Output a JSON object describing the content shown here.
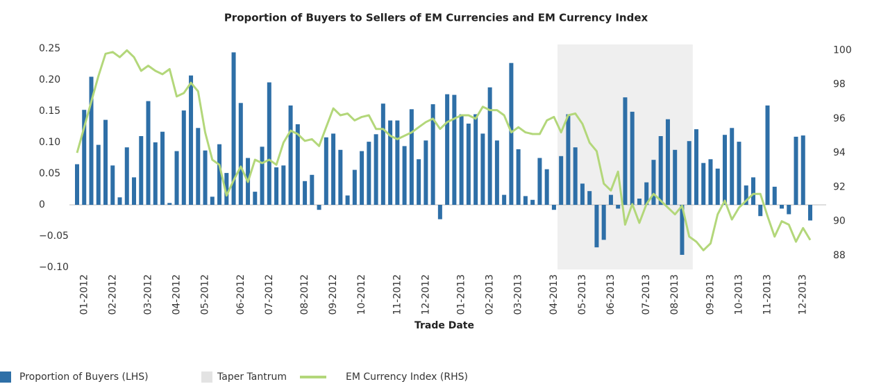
{
  "chart_data": {
    "type": "bar_line",
    "title": "Proportion of Buyers to Sellers of EM Currencies and EM Currency Index",
    "xlabel": "Trade Date",
    "categories": [
      null,
      "01-2012",
      null,
      null,
      null,
      "02-2012",
      null,
      null,
      null,
      null,
      "03-2012",
      null,
      null,
      null,
      "04-2012",
      null,
      null,
      null,
      "05-2012",
      null,
      null,
      null,
      null,
      "06-2012",
      null,
      null,
      null,
      "07-2012",
      null,
      null,
      null,
      null,
      "08-2012",
      null,
      null,
      null,
      "09-2012",
      null,
      null,
      null,
      "10-2012",
      null,
      null,
      null,
      null,
      "11-2012",
      null,
      null,
      null,
      "12-2012",
      null,
      null,
      null,
      null,
      "01-2013",
      null,
      null,
      null,
      "02-2013",
      null,
      null,
      null,
      "03-2013",
      null,
      null,
      null,
      null,
      "04-2013",
      null,
      null,
      null,
      "05-2013",
      null,
      null,
      null,
      "06-2013",
      null,
      null,
      null,
      null,
      "07-2013",
      null,
      null,
      null,
      "08-2013",
      null,
      null,
      null,
      null,
      "09-2013",
      null,
      null,
      null,
      "10-2013",
      null,
      null,
      null,
      "11-2013",
      null,
      null,
      null,
      null,
      "12-2013",
      null
    ],
    "series": [
      {
        "name": "Proportion of Buyers (LHS)",
        "color": "#2e6fa7",
        "axis": "y",
        "values": [
          0.065,
          0.152,
          0.205,
          0.096,
          0.136,
          0.063,
          0.012,
          0.092,
          0.044,
          0.11,
          0.166,
          0.1,
          0.117,
          0.003,
          0.086,
          0.151,
          0.207,
          0.123,
          0.087,
          0.013,
          0.097,
          0.051,
          0.244,
          0.163,
          0.075,
          0.021,
          0.093,
          0.196,
          0.06,
          0.063,
          0.159,
          0.129,
          0.038,
          0.048,
          -0.008,
          0.108,
          0.114,
          0.088,
          0.015,
          0.056,
          0.086,
          0.101,
          0.113,
          0.162,
          0.135,
          0.135,
          0.094,
          0.153,
          0.073,
          0.103,
          0.161,
          -0.023,
          0.177,
          0.176,
          0.145,
          0.13,
          0.145,
          0.114,
          0.188,
          0.103,
          0.016,
          0.227,
          0.089,
          0.014,
          0.008,
          0.075,
          0.057,
          -0.008,
          0.078,
          0.145,
          0.092,
          0.034,
          0.022,
          -0.068,
          -0.056,
          0.016,
          -0.006,
          0.172,
          0.149,
          0.01,
          0.036,
          0.072,
          0.11,
          0.137,
          0.088,
          -0.08,
          0.102,
          0.121,
          0.067,
          0.073,
          0.058,
          0.112,
          0.123,
          0.101,
          0.031,
          0.044,
          -0.018,
          0.159,
          0.029,
          -0.006,
          -0.015,
          0.109,
          0.111,
          -0.025
        ]
      },
      {
        "name": "EM Currency Index (RHS)",
        "color": "#b3d77a",
        "axis": "y2",
        "values": [
          94.0,
          95.5,
          97.0,
          98.5,
          99.8,
          99.9,
          99.6,
          100.0,
          99.6,
          98.8,
          99.1,
          98.8,
          98.6,
          98.9,
          97.3,
          97.5,
          98.1,
          97.6,
          95.2,
          93.6,
          93.3,
          91.5,
          92.4,
          93.2,
          92.3,
          93.6,
          93.4,
          93.6,
          93.3,
          94.6,
          95.3,
          95.1,
          94.7,
          94.8,
          94.4,
          95.5,
          96.6,
          96.2,
          96.3,
          95.9,
          96.1,
          96.2,
          95.4,
          95.4,
          95.0,
          94.8,
          95.0,
          95.2,
          95.5,
          95.8,
          96.0,
          95.4,
          95.8,
          96.0,
          96.2,
          96.2,
          96.0,
          96.7,
          96.5,
          96.5,
          96.2,
          95.2,
          95.5,
          95.2,
          95.1,
          95.1,
          95.9,
          96.1,
          95.2,
          96.2,
          96.3,
          95.7,
          94.6,
          94.1,
          92.2,
          91.8,
          92.9,
          89.8,
          91.0,
          89.9,
          91.0,
          91.6,
          91.2,
          90.8,
          90.4,
          90.9,
          89.1,
          88.8,
          88.3,
          88.7,
          90.4,
          91.2,
          90.1,
          90.8,
          91.2,
          91.6,
          91.6,
          90.3,
          89.1,
          90.0,
          89.8,
          88.8,
          89.6,
          88.9
        ]
      }
    ],
    "bands": [
      {
        "name": "Taper Tantrum",
        "color": "#efefef",
        "start": 68,
        "end": 87
      }
    ],
    "ylim": [
      -0.1,
      0.25
    ],
    "yticks": [
      0.25,
      {
        "value": 0.2,
        "label": "0.20"
      },
      0.15,
      {
        "value": 0.1,
        "label": "0.10"
      },
      0.05,
      0,
      {
        "value": -0.05,
        "label": "−0.05"
      },
      {
        "value": -0.1,
        "label": "−0.10"
      }
    ],
    "y2lim": [
      87.3,
      100.1
    ],
    "y2ticks": [
      88,
      90,
      92,
      94,
      96,
      98,
      100
    ]
  }
}
